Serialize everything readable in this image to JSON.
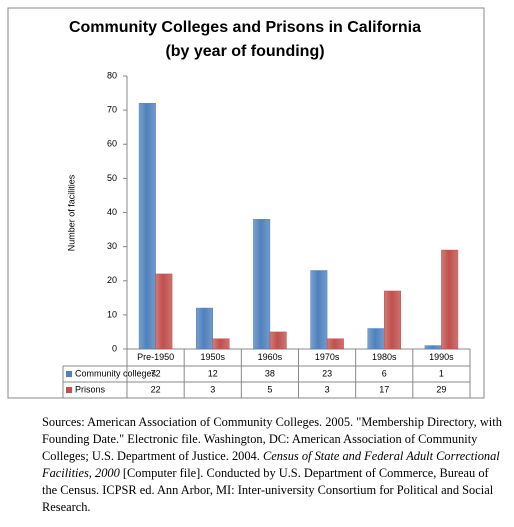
{
  "chart_data": {
    "type": "bar",
    "title": "Community Colleges and Prisons in California",
    "subtitle": "(by year of founding)",
    "y_label": "Number of facilities",
    "categories": [
      "Pre-1950",
      "1950s",
      "1960s",
      "1970s",
      "1980s",
      "1990s"
    ],
    "series": [
      {
        "name": "Community colleges",
        "color": "#4f81bd",
        "values": [
          72,
          12,
          38,
          23,
          6,
          1
        ]
      },
      {
        "name": "Prisons",
        "color": "#c0504d",
        "values": [
          22,
          3,
          5,
          3,
          17,
          29
        ]
      }
    ],
    "ylim": [
      0,
      80
    ],
    "yticks": [
      0,
      10,
      20,
      30,
      40,
      50,
      60,
      70,
      80
    ],
    "grid": false
  },
  "sources": [
    {
      "text": "Sources: American Association of Community Colleges.  2005. \"Membership Directory, with Founding Date.\" Electronic file. Washington, DC: American Association of Community Colleges; U.S. Department of Justice. 2004. ",
      "italic": false
    },
    {
      "text": "Census of State and Federal Adult Correctional Facilities, 2000",
      "italic": true
    },
    {
      "text": " [Computer file]. Conducted by U.S. Department of Commerce, Bureau of the Census.  ICPSR ed.  Ann Arbor, MI: Inter-university Consortium for Political and Social Research.",
      "italic": false
    }
  ]
}
